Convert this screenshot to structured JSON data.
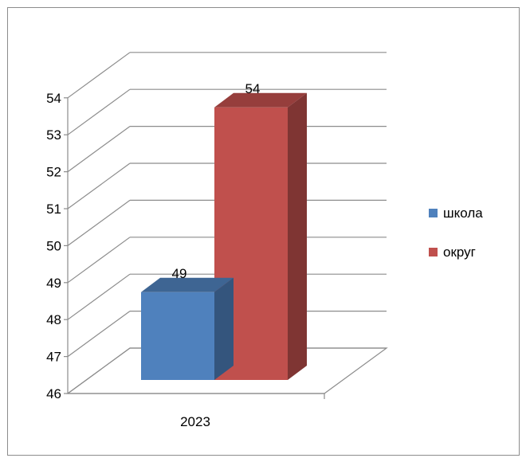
{
  "chart_data": {
    "type": "bar",
    "style": "3d-clustered-column",
    "categories": [
      "2023"
    ],
    "series": [
      {
        "name": "школа",
        "values": [
          49
        ],
        "color": "#4f81bd"
      },
      {
        "name": "округ",
        "values": [
          54
        ],
        "color": "#c0504d"
      }
    ],
    "data_labels": [
      "49",
      "54"
    ],
    "ylim": [
      46,
      54
    ],
    "yticks": [
      "46",
      "47",
      "48",
      "49",
      "50",
      "51",
      "52",
      "53",
      "54"
    ],
    "grid": true,
    "legend_position": "right",
    "title": "",
    "xlabel": "",
    "ylabel": ""
  }
}
